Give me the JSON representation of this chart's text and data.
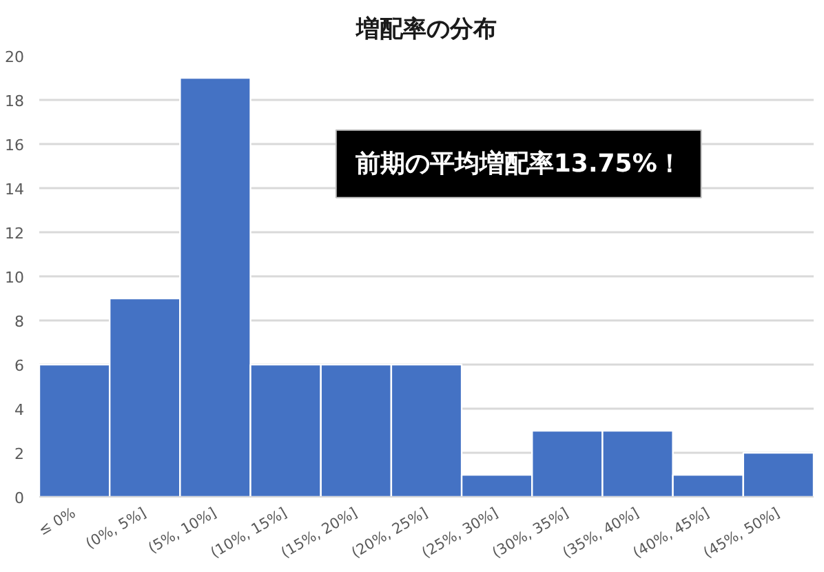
{
  "chart_data": {
    "type": "bar",
    "title": "増配率の分布",
    "categories": [
      "≤ 0%",
      "(0%, 5%]",
      "(5%, 10%]",
      "(10%, 15%]",
      "(15%, 20%]",
      "(20%, 25%]",
      "(25%, 30%]",
      "(30%, 35%]",
      "(35%, 40%]",
      "(40%, 45%]",
      "(45%, 50%]"
    ],
    "values": [
      6,
      9,
      19,
      6,
      6,
      6,
      1,
      3,
      3,
      1,
      2
    ],
    "color": "#4472c4",
    "ylim": [
      0,
      20
    ],
    "yticks": [
      0,
      2,
      4,
      6,
      8,
      10,
      12,
      14,
      16,
      18,
      20
    ],
    "grid": "y",
    "annotations": [
      "前期の平均増配率13.75%！"
    ]
  }
}
